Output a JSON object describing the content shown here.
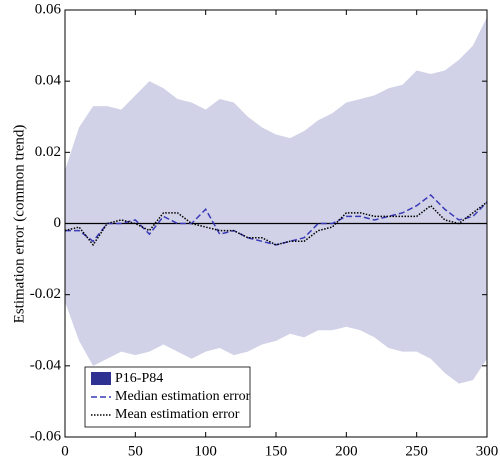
{
  "chart_data": {
    "type": "line",
    "ylabel": "Estimation error (common trend)",
    "x": [
      0,
      10,
      20,
      30,
      40,
      50,
      60,
      70,
      80,
      90,
      100,
      110,
      120,
      130,
      140,
      150,
      160,
      170,
      180,
      190,
      200,
      210,
      220,
      230,
      240,
      250,
      260,
      270,
      280,
      290,
      300
    ],
    "series": [
      {
        "name": "P16-P84",
        "kind": "band",
        "color": "#2e3192",
        "alpha": 0.22,
        "upper": [
          0.015,
          0.027,
          0.033,
          0.033,
          0.032,
          0.036,
          0.04,
          0.038,
          0.035,
          0.034,
          0.032,
          0.035,
          0.034,
          0.03,
          0.027,
          0.025,
          0.024,
          0.026,
          0.029,
          0.031,
          0.034,
          0.035,
          0.036,
          0.038,
          0.039,
          0.043,
          0.042,
          0.043,
          0.046,
          0.05,
          0.058
        ],
        "lower": [
          -0.022,
          -0.033,
          -0.04,
          -0.038,
          -0.036,
          -0.037,
          -0.036,
          -0.034,
          -0.036,
          -0.038,
          -0.036,
          -0.035,
          -0.037,
          -0.036,
          -0.034,
          -0.033,
          -0.031,
          -0.032,
          -0.03,
          -0.03,
          -0.029,
          -0.03,
          -0.032,
          -0.035,
          -0.036,
          -0.036,
          -0.038,
          -0.042,
          -0.045,
          -0.044,
          -0.038
        ]
      },
      {
        "name": "Median estimation error",
        "kind": "line",
        "color": "#3a3ab8",
        "dash": "dashed",
        "values": [
          -0.002,
          -0.002,
          -0.005,
          0.0,
          0.0,
          0.001,
          -0.003,
          0.002,
          0.0,
          0.0,
          0.004,
          -0.003,
          -0.002,
          -0.004,
          -0.005,
          -0.006,
          -0.005,
          -0.004,
          0.0,
          0.0,
          0.002,
          0.002,
          0.001,
          0.002,
          0.003,
          0.005,
          0.008,
          0.004,
          0.001,
          0.002,
          0.006
        ]
      },
      {
        "name": "Mean estimation error",
        "kind": "line",
        "color": "#000000",
        "dash": "dotted",
        "values": [
          -0.002,
          -0.001,
          -0.006,
          0.0,
          0.001,
          0.0,
          -0.002,
          0.003,
          0.003,
          0.0,
          -0.001,
          -0.002,
          -0.002,
          -0.004,
          -0.004,
          -0.006,
          -0.005,
          -0.005,
          -0.002,
          -0.001,
          0.003,
          0.003,
          0.002,
          0.002,
          0.002,
          0.002,
          0.005,
          0.001,
          0.0,
          0.003,
          0.006
        ]
      }
    ],
    "hline": 0,
    "xlim": [
      0,
      300
    ],
    "xticks": [
      0,
      50,
      100,
      150,
      200,
      250,
      300
    ],
    "ylim": [
      -0.06,
      0.06
    ],
    "yticks": [
      -0.06,
      -0.04,
      -0.02,
      0,
      0.02,
      0.04,
      0.06
    ],
    "legend_loc": "lower left"
  }
}
